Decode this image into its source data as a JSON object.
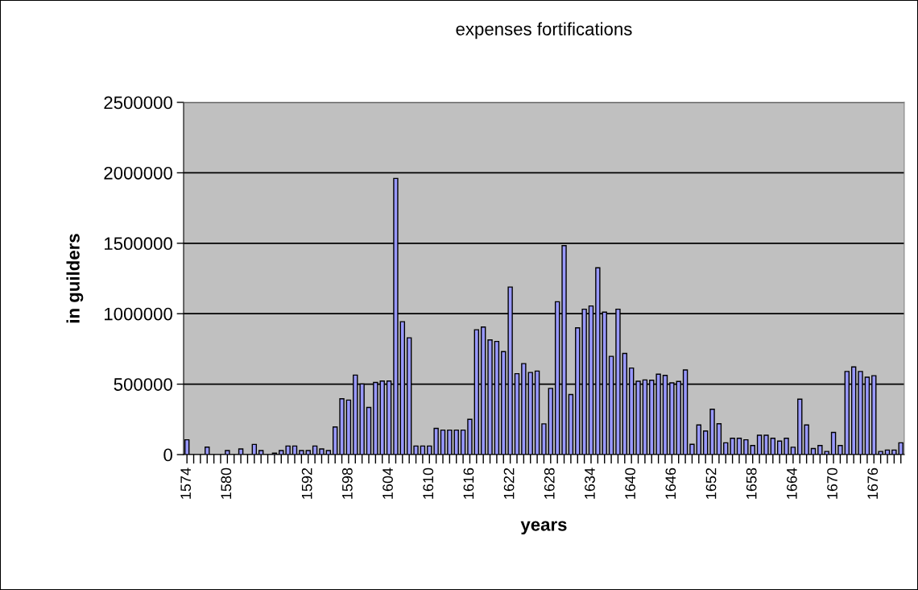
{
  "chart_data": {
    "type": "bar",
    "title": "expenses fortifications",
    "xlabel": "years",
    "ylabel": "in guilders",
    "categories": [
      "1574",
      null,
      null,
      null,
      null,
      null,
      "1580",
      null,
      null,
      null,
      null,
      null,
      null,
      null,
      null,
      null,
      null,
      null,
      "1592",
      null,
      null,
      null,
      null,
      null,
      "1598",
      null,
      null,
      null,
      null,
      null,
      "1604",
      null,
      null,
      null,
      null,
      null,
      "1610",
      null,
      null,
      null,
      null,
      null,
      "1616",
      null,
      null,
      null,
      null,
      null,
      "1622",
      null,
      null,
      null,
      null,
      null,
      "1628",
      null,
      null,
      null,
      null,
      null,
      "1634",
      null,
      null,
      null,
      null,
      null,
      "1640",
      null,
      null,
      null,
      null,
      null,
      "1646",
      null,
      null,
      null,
      null,
      null,
      "1652",
      null,
      null,
      null,
      null,
      null,
      "1658",
      null,
      null,
      null,
      null,
      null,
      "1664",
      null,
      null,
      null,
      null,
      null,
      "1670",
      null,
      null,
      null,
      null,
      null,
      "1676",
      null,
      null,
      null,
      null
    ],
    "values": [
      105000,
      null,
      null,
      53000,
      null,
      null,
      29000,
      null,
      40000,
      null,
      72000,
      29000,
      null,
      10000,
      29000,
      61000,
      61000,
      29000,
      29000,
      61000,
      40000,
      29000,
      196000,
      396000,
      387000,
      564000,
      501000,
      335000,
      512000,
      522000,
      522000,
      1960000,
      943000,
      829000,
      61000,
      61000,
      61000,
      186000,
      174000,
      174000,
      174000,
      174000,
      250000,
      886000,
      905000,
      814000,
      803000,
      731000,
      1189000,
      574000,
      646000,
      583000,
      593000,
      218000,
      470000,
      1085000,
      1483000,
      426000,
      900000,
      1032000,
      1055000,
      1326000,
      1011000,
      697000,
      1032000,
      718000,
      614000,
      521000,
      530000,
      528000,
      571000,
      562000,
      509000,
      519000,
      601000,
      73000,
      210000,
      167000,
      322000,
      219000,
      84000,
      116000,
      116000,
      105000,
      64000,
      137000,
      137000,
      116000,
      96000,
      116000,
      52000,
      393000,
      210000,
      43000,
      64000,
      22000,
      157000,
      64000,
      590000,
      622000,
      590000,
      549000,
      560000,
      22000,
      32000,
      32000,
      84000
    ],
    "color": "#9999ff",
    "ylim": [
      0,
      2500000
    ],
    "yticks": [
      0,
      500000,
      1000000,
      1500000,
      2000000,
      2500000
    ],
    "grid": "y"
  }
}
